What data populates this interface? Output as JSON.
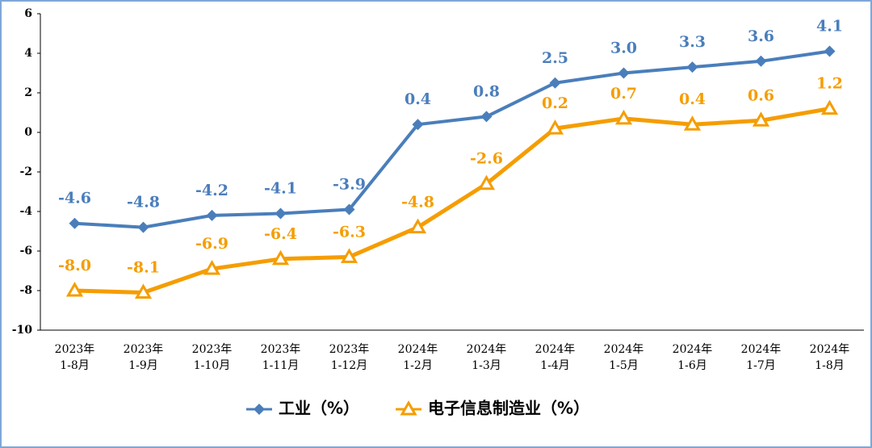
{
  "chart_data": {
    "type": "line",
    "categories": [
      [
        "2023年",
        "1-8月"
      ],
      [
        "2023年",
        "1-9月"
      ],
      [
        "2023年",
        "1-10月"
      ],
      [
        "2023年",
        "1-11月"
      ],
      [
        "2023年",
        "1-12月"
      ],
      [
        "2024年",
        "1-2月"
      ],
      [
        "2024年",
        "1-3月"
      ],
      [
        "2024年",
        "1-4月"
      ],
      [
        "2024年",
        "1-5月"
      ],
      [
        "2024年",
        "1-6月"
      ],
      [
        "2024年",
        "1-7月"
      ],
      [
        "2024年",
        "1-8月"
      ]
    ],
    "series": [
      {
        "name": "工业（%）",
        "color": "#4a7ebb",
        "marker": "diamond",
        "values": [
          -4.6,
          -4.8,
          -4.2,
          -4.1,
          -3.9,
          0.4,
          0.8,
          2.5,
          3.0,
          3.3,
          3.6,
          4.1
        ],
        "value_labels": [
          "-4.6",
          "-4.8",
          "-4.2",
          "-4.1",
          "-3.9",
          "0.4",
          "0.8",
          "2.5",
          "3.0",
          "3.3",
          "3.6",
          "4.1"
        ]
      },
      {
        "name": "电子信息制造业（%）",
        "color": "#f59d00",
        "marker": "triangle",
        "values": [
          -8.0,
          -8.1,
          -6.9,
          -6.4,
          -6.3,
          -4.8,
          -2.6,
          0.2,
          0.7,
          0.4,
          0.6,
          1.2
        ],
        "value_labels": [
          "-8.0",
          "-8.1",
          "-6.9",
          "-6.4",
          "-6.3",
          "-4.8",
          "-2.6",
          "0.2",
          "0.7",
          "0.4",
          "0.6",
          "1.2"
        ]
      }
    ],
    "ylim": [
      -10,
      6
    ],
    "yticks": [
      -10,
      -8,
      -6,
      -4,
      -2,
      0,
      2,
      4,
      6
    ],
    "grid": false,
    "legend": "bottom"
  }
}
